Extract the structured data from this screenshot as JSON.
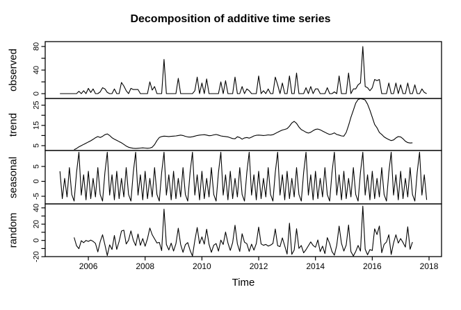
{
  "title": "Decomposition of additive time series",
  "xlabel": "Time",
  "chart_data": {
    "type": "line",
    "grid": false,
    "legend": "none",
    "colors": {
      "line": "#000000",
      "background": "#ffffff",
      "text": "#000000"
    },
    "x_start": 2005,
    "x_step_months": 1,
    "xlim": [
      2004.48,
      2018.44
    ],
    "x_ticks": [
      2006,
      2008,
      2010,
      2012,
      2014,
      2016,
      2018
    ],
    "panels": [
      {
        "name": "observed",
        "ylim": [
          -8.2,
          88.3
        ],
        "ticks": [
          0,
          20,
          40,
          60,
          80
        ],
        "tick_labels": [
          "0",
          "",
          "40",
          "",
          "80"
        ]
      },
      {
        "name": "trend",
        "ylim": [
          2.6,
          28.3
        ],
        "ticks": [
          5,
          10,
          15,
          20,
          25
        ],
        "tick_labels": [
          "5",
          "",
          "15",
          "",
          "25"
        ]
      },
      {
        "name": "seasonal",
        "ylim": [
          -7.56,
          10.35
        ],
        "ticks": [
          -5,
          0,
          5
        ],
        "tick_labels": [
          "-5",
          "0",
          "5"
        ]
      },
      {
        "name": "random",
        "ylim": [
          -19.9,
          44.9
        ],
        "ticks": [
          -20,
          -10,
          0,
          10,
          20,
          30,
          40
        ],
        "tick_labels": [
          "-20",
          "",
          "0",
          "",
          "20",
          "",
          "40"
        ]
      }
    ],
    "observed": [
      0,
      0,
      0,
      0,
      0,
      0,
      0,
      0,
      4,
      0,
      5,
      0,
      9,
      2,
      8,
      0,
      0,
      3,
      10,
      8,
      2,
      0,
      0,
      8,
      0,
      0,
      19,
      13,
      5,
      0,
      9,
      7,
      7,
      7,
      0,
      0,
      0,
      0,
      20,
      6,
      12,
      0,
      0,
      0,
      58,
      0,
      0,
      0,
      0,
      0,
      26,
      0,
      0,
      0,
      0,
      0,
      0,
      5,
      28,
      0,
      18,
      0,
      25,
      0,
      0,
      0,
      0,
      0,
      20,
      0,
      22,
      0,
      0,
      0,
      28,
      0,
      0,
      12,
      0,
      8,
      5,
      0,
      0,
      0,
      30,
      0,
      5,
      0,
      8,
      0,
      0,
      28,
      15,
      0,
      18,
      0,
      0,
      30,
      0,
      0,
      35,
      0,
      0,
      0,
      10,
      0,
      12,
      0,
      8,
      8,
      0,
      0,
      0,
      10,
      0,
      0,
      3,
      0,
      30,
      0,
      0,
      0,
      35,
      0,
      8,
      8,
      15,
      18,
      80,
      12,
      10,
      5,
      10,
      24,
      22,
      24,
      0,
      0,
      0,
      18,
      0,
      0,
      18,
      0,
      15,
      0,
      0,
      18,
      0,
      0,
      15,
      0,
      0,
      8,
      2,
      0
    ],
    "trend_start_index": 6,
    "trend": [
      3.0,
      3.6,
      4.4,
      5.0,
      5.6,
      6.2,
      6.8,
      7.4,
      8.1,
      8.9,
      9.5,
      9.0,
      9.6,
      10.4,
      10.8,
      10.0,
      8.9,
      8.2,
      7.6,
      7.0,
      6.4,
      5.6,
      4.8,
      4.2,
      3.9,
      3.7,
      3.6,
      3.7,
      3.8,
      3.9,
      3.8,
      3.7,
      3.8,
      4.2,
      5.5,
      7.5,
      9.0,
      9.5,
      9.7,
      9.6,
      9.5,
      9.6,
      9.7,
      9.8,
      10.0,
      10.2,
      10.0,
      9.6,
      9.3,
      9.2,
      9.4,
      9.7,
      10.0,
      10.2,
      10.3,
      10.4,
      10.2,
      9.9,
      10.0,
      10.3,
      10.5,
      10.2,
      9.8,
      9.6,
      9.5,
      9.3,
      8.9,
      8.5,
      8.4,
      9.4,
      9.0,
      8.2,
      8.8,
      9.0,
      8.7,
      9.2,
      9.8,
      10.1,
      10.2,
      10.1,
      10.0,
      10.1,
      10.3,
      10.2,
      10.4,
      11.0,
      11.6,
      12.2,
      12.7,
      13.0,
      13.4,
      14.6,
      16.2,
      17.0,
      16.0,
      14.2,
      12.9,
      12.3,
      11.6,
      11.2,
      11.6,
      12.4,
      13.0,
      13.2,
      12.8,
      12.2,
      11.6,
      11.0,
      10.5,
      10.8,
      11.3,
      10.5,
      10.2,
      9.8,
      9.7,
      11.5,
      15.0,
      19.0,
      22.5,
      26.0,
      27.8,
      28.2,
      28.0,
      27.5,
      25.5,
      22.5,
      19.0,
      15.5,
      13.8,
      11.5,
      10.5,
      9.3,
      8.6,
      8.0,
      7.5,
      7.8,
      8.8,
      9.5,
      9.3,
      8.4,
      7.2,
      6.5,
      6.3,
      6.4
    ],
    "seasonal_pattern": [
      3.4,
      -5.8,
      1.0,
      -5.2,
      4.6,
      -4.4,
      -6.6,
      3.0,
      9.8,
      -4.6,
      2.2,
      -6.2
    ],
    "random_note": "random = observed - trend - seasonal, defined only where trend exists",
    "random": [
      3.6,
      -6.6,
      -10.2,
      -0.4,
      -2.8,
      0,
      -1.2,
      0.4,
      -1.1,
      -3.7,
      -14.1,
      -1.6,
      7,
      -5.4,
      -18.6,
      -5.4,
      -11.1,
      6,
      -11,
      -1.2,
      11.6,
      12.6,
      -4.4,
      0.2,
      11.7,
      0.3,
      -6.4,
      7.9,
      -6,
      2.3,
      -7.2,
      2.1,
      15.2,
      7,
      1.9,
      -3.1,
      -2.4,
      -12.5,
      38.5,
      -5,
      -11.7,
      -3.4,
      -13.1,
      -4,
      15,
      -5,
      -14.6,
      -5.2,
      -2.7,
      -12.2,
      -19.2,
      -0.1,
      15.8,
      -4,
      4.3,
      -4.6,
      13.8,
      -4.7,
      -14.6,
      -5.9,
      -3.9,
      -13.2,
      0.4,
      -5,
      10.3,
      -3.1,
      -12.3,
      -2.7,
      18.6,
      -4.2,
      -13.6,
      8.2,
      -2.2,
      -4,
      -13.5,
      -4.6,
      -12,
      -3.9,
      16.4,
      -4.3,
      -6,
      -4.9,
      -6.9,
      -5.8,
      -3.8,
      14,
      -6.4,
      -7.6,
      3.1,
      -6.8,
      -16.8,
      21.2,
      -17.2,
      -11.8,
      14.4,
      -9.8,
      -6.3,
      -15.3,
      -11.4,
      -6.6,
      -1.8,
      -6.2,
      -8.4,
      0.6,
      -13.8,
      -7,
      -16.2,
      3.4,
      -3.9,
      -13.8,
      -18.1,
      -5.9,
      17.6,
      -3.6,
      -13.1,
      -5.7,
      19,
      -13.8,
      -19.1,
      -13.6,
      -6.2,
      -13.2,
      42.2,
      -10.9,
      -17.7,
      -11.3,
      -12.4,
      14.3,
      7.2,
      17.7,
      -15.1,
      -4.9,
      -2,
      7,
      -17.3,
      -3.2,
      7,
      -3.3,
      2.3,
      -2.6,
      -8.2,
      16.7,
      -10.9,
      -2
    ]
  }
}
